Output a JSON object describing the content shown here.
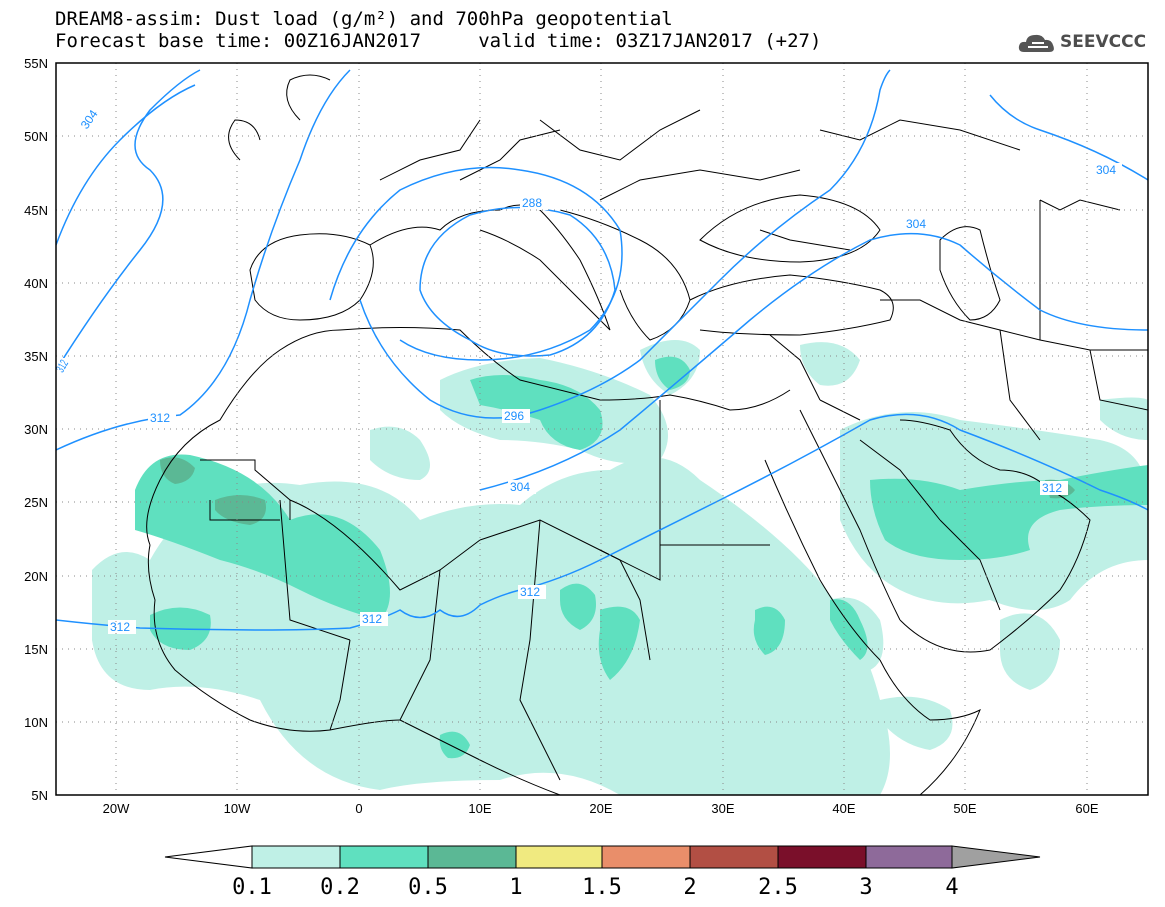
{
  "title_line1": "DREAM8-assim: Dust load (g/m²) and 700hPa geopotential",
  "title_line2": "Forecast base time: 00Z16JAN2017     valid time: 03Z17JAN2017 (+27)",
  "logo_text": "SEEVCCC",
  "map": {
    "lon_range": [
      -25,
      65
    ],
    "lat_range": [
      5,
      55
    ],
    "lat_labels": [
      "55N",
      "50N",
      "45N",
      "40N",
      "35N",
      "30N",
      "25N",
      "20N",
      "15N",
      "10N",
      "5N"
    ],
    "lon_labels": [
      "20W",
      "10W",
      "0",
      "10E",
      "20E",
      "30E",
      "40E",
      "50E",
      "60E"
    ],
    "contour_labels": [
      "304",
      "312",
      "312",
      "296",
      "288",
      "304",
      "312",
      "312",
      "312",
      "304",
      "304",
      "312"
    ]
  },
  "colorbar": {
    "labels": [
      "0.1",
      "0.2",
      "0.5",
      "1",
      "1.5",
      "2",
      "2.5",
      "3",
      "4"
    ],
    "colors": [
      "#ffffff",
      "#bff0e6",
      "#5fe0bf",
      "#5bb895",
      "#f0ea80",
      "#e98e6a",
      "#b24f44",
      "#7a0f2a",
      "#8e6a9a",
      "#a0a0a0"
    ]
  },
  "colors": {
    "contour": "#1e90ff",
    "dust_low": "#bff0e6",
    "dust_mid": "#5fe0bf",
    "dust_high": "#5bb895"
  }
}
